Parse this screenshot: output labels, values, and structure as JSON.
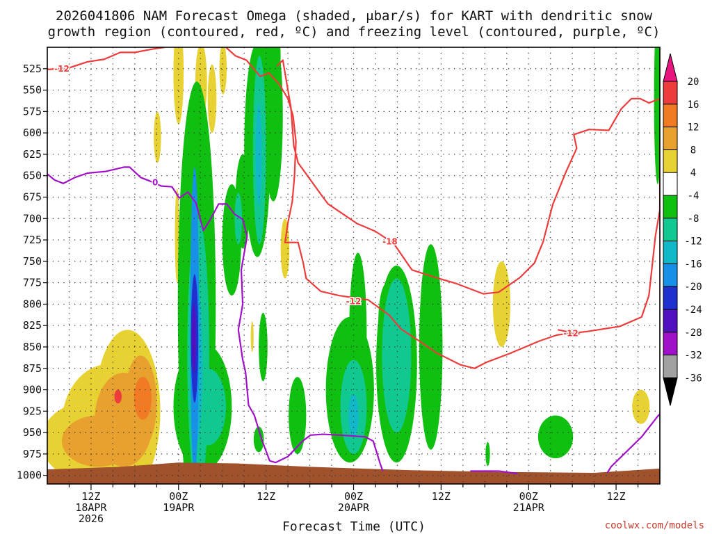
{
  "title": {
    "line1": "2026041806 NAM Forecast Omega (shaded, μbar/s) for KART with dendritic snow",
    "line2": "growth region (contoured, red, ºC) and freezing level (contoured, purple, ºC)"
  },
  "credit": "coolwx.com/models",
  "chart_data": {
    "type": "heatmap",
    "title": "2026041806 NAM Forecast Omega (shaded, μbar/s) for KART with dendritic snow growth region (contoured, red, ºC) and freezing level (contoured, purple, ºC)",
    "xlabel": "Forecast Time (UTC)",
    "ylabel": "",
    "x_units": "forecast hour",
    "y_units": "hPa",
    "xlim": [
      0,
      84
    ],
    "ylim": [
      1010,
      500
    ],
    "grid": true,
    "x_ticks": [
      {
        "hour": 6,
        "label": [
          "12Z",
          "18APR",
          "2026"
        ]
      },
      {
        "hour": 18,
        "label": [
          "00Z",
          "19APR"
        ]
      },
      {
        "hour": 30,
        "label": [
          "12Z"
        ]
      },
      {
        "hour": 42,
        "label": [
          "00Z",
          "20APR"
        ]
      },
      {
        "hour": 54,
        "label": [
          "12Z"
        ]
      },
      {
        "hour": 66,
        "label": [
          "00Z",
          "21APR"
        ]
      },
      {
        "hour": 78,
        "label": [
          "12Z"
        ]
      }
    ],
    "y_ticks": [
      525,
      550,
      575,
      600,
      625,
      650,
      675,
      700,
      725,
      750,
      775,
      800,
      825,
      850,
      875,
      900,
      925,
      950,
      975,
      1000
    ],
    "colorbar": {
      "labels": [
        "20",
        "16",
        "12",
        "8",
        "4",
        "-4",
        "-8",
        "-12",
        "-16",
        "-20",
        "-24",
        "-28",
        "-32",
        "-36"
      ],
      "bins": [
        {
          "range": [
            20,
            99
          ],
          "color": "#e8157f"
        },
        {
          "range": [
            16,
            20
          ],
          "color": "#ee3b3b"
        },
        {
          "range": [
            12,
            16
          ],
          "color": "#f07b24"
        },
        {
          "range": [
            8,
            12
          ],
          "color": "#e8a02e"
        },
        {
          "range": [
            4,
            8
          ],
          "color": "#e8d233"
        },
        {
          "range": [
            -4,
            4
          ],
          "color": "#ffffff"
        },
        {
          "range": [
            -8,
            -4
          ],
          "color": "#10c010"
        },
        {
          "range": [
            -12,
            -8
          ],
          "color": "#10c890"
        },
        {
          "range": [
            -16,
            -12
          ],
          "color": "#10b8c8"
        },
        {
          "range": [
            -20,
            -16
          ],
          "color": "#1890e8"
        },
        {
          "range": [
            -24,
            -20
          ],
          "color": "#2030d0"
        },
        {
          "range": [
            -28,
            -24
          ],
          "color": "#5010c0"
        },
        {
          "range": [
            -32,
            -28
          ],
          "color": "#a010c8"
        },
        {
          "range": [
            -36,
            -32
          ],
          "color": "#a0a0a0"
        },
        {
          "range": [
            -99,
            -36
          ],
          "color": "#000000"
        }
      ]
    },
    "omega_features": [
      {
        "hour": 5.2,
        "p": 960,
        "dh": 6.0,
        "dp": 45,
        "value": 6
      },
      {
        "hour": 8.5,
        "p": 940,
        "dh": 6.5,
        "dp": 70,
        "value": 6
      },
      {
        "hour": 11.0,
        "p": 925,
        "dh": 4.5,
        "dp": 95,
        "value": 6
      },
      {
        "hour": 7.0,
        "p": 960,
        "dh": 5.0,
        "dp": 30,
        "value": 10
      },
      {
        "hour": 10.5,
        "p": 935,
        "dh": 4.0,
        "dp": 55,
        "value": 10
      },
      {
        "hour": 12.8,
        "p": 915,
        "dh": 2.2,
        "dp": 55,
        "value": 10
      },
      {
        "hour": 13.1,
        "p": 910,
        "dh": 1.2,
        "dp": 25,
        "value": 14
      },
      {
        "hour": 9.7,
        "p": 908,
        "dh": 0.5,
        "dp": 8,
        "value": 18
      },
      {
        "hour": 15.1,
        "p": 605,
        "dh": 0.5,
        "dp": 30,
        "value": 6
      },
      {
        "hour": 18.0,
        "p": 530,
        "dh": 0.7,
        "dp": 60,
        "value": 6
      },
      {
        "hour": 17.8,
        "p": 720,
        "dh": 0.3,
        "dp": 55,
        "value": 6
      },
      {
        "hour": 21.1,
        "p": 540,
        "dh": 0.8,
        "dp": 45,
        "value": 6
      },
      {
        "hour": 22.6,
        "p": 560,
        "dh": 0.6,
        "dp": 40,
        "value": 6
      },
      {
        "hour": 24.1,
        "p": 525,
        "dh": 0.5,
        "dp": 30,
        "value": 6
      },
      {
        "hour": 28.1,
        "p": 838,
        "dh": 0.2,
        "dp": 18,
        "value": 6
      },
      {
        "hour": 32.6,
        "p": 735,
        "dh": 0.6,
        "dp": 35,
        "value": 6
      },
      {
        "hour": 62.3,
        "p": 800,
        "dh": 1.2,
        "dp": 50,
        "value": 6
      },
      {
        "hour": 81.4,
        "p": 920,
        "dh": 1.2,
        "dp": 20,
        "value": 6
      },
      {
        "hour": 20.5,
        "p": 800,
        "dh": 2.6,
        "dp": 260,
        "value": -6
      },
      {
        "hour": 21.3,
        "p": 920,
        "dh": 4.0,
        "dp": 75,
        "value": -6
      },
      {
        "hour": 25.3,
        "p": 725,
        "dh": 1.3,
        "dp": 65,
        "value": -6
      },
      {
        "hour": 26.8,
        "p": 680,
        "dh": 1.0,
        "dp": 55,
        "value": -6
      },
      {
        "hour": 28.8,
        "p": 620,
        "dh": 1.8,
        "dp": 125,
        "value": -6
      },
      {
        "hour": 31.0,
        "p": 580,
        "dh": 1.3,
        "dp": 100,
        "value": -6
      },
      {
        "hour": 30.6,
        "p": 510,
        "dh": 1.4,
        "dp": 40,
        "value": -6
      },
      {
        "hour": 29.6,
        "p": 850,
        "dh": 0.6,
        "dp": 40,
        "value": -6
      },
      {
        "hour": 29.0,
        "p": 958,
        "dh": 0.7,
        "dp": 15,
        "value": -6
      },
      {
        "hour": 34.3,
        "p": 930,
        "dh": 1.2,
        "dp": 45,
        "value": -6
      },
      {
        "hour": 41.5,
        "p": 900,
        "dh": 3.3,
        "dp": 85,
        "value": -6
      },
      {
        "hour": 42.6,
        "p": 835,
        "dh": 1.2,
        "dp": 95,
        "value": -6
      },
      {
        "hour": 47.9,
        "p": 870,
        "dh": 2.8,
        "dp": 115,
        "value": -6
      },
      {
        "hour": 46.6,
        "p": 820,
        "dh": 1.2,
        "dp": 45,
        "value": -6
      },
      {
        "hour": 52.6,
        "p": 850,
        "dh": 1.6,
        "dp": 120,
        "value": -6
      },
      {
        "hour": 69.7,
        "p": 955,
        "dh": 2.4,
        "dp": 25,
        "value": -6
      },
      {
        "hour": 83.7,
        "p": 560,
        "dh": 0.5,
        "dp": 100,
        "value": -6
      },
      {
        "hour": 60.4,
        "p": 975,
        "dh": 0.3,
        "dp": 14,
        "value": -6
      },
      {
        "hour": 20.7,
        "p": 860,
        "dh": 1.5,
        "dp": 160,
        "value": -10
      },
      {
        "hour": 22.0,
        "p": 920,
        "dh": 2.5,
        "dp": 45,
        "value": -10
      },
      {
        "hour": 29.1,
        "p": 620,
        "dh": 0.9,
        "dp": 110,
        "value": -10
      },
      {
        "hour": 26.2,
        "p": 700,
        "dh": 0.5,
        "dp": 30,
        "value": -10
      },
      {
        "hour": 42.0,
        "p": 920,
        "dh": 1.8,
        "dp": 55,
        "value": -10
      },
      {
        "hour": 47.9,
        "p": 860,
        "dh": 2.0,
        "dp": 90,
        "value": -10
      },
      {
        "hour": 20.5,
        "p": 870,
        "dh": 0.8,
        "dp": 90,
        "value": -14
      },
      {
        "hour": 29.0,
        "p": 625,
        "dh": 0.4,
        "dp": 60,
        "value": -14
      },
      {
        "hour": 42.0,
        "p": 930,
        "dh": 0.7,
        "dp": 25,
        "value": -14
      },
      {
        "hour": 20.2,
        "p": 820,
        "dh": 0.6,
        "dp": 180,
        "value": -18
      },
      {
        "hour": 20.2,
        "p": 840,
        "dh": 0.5,
        "dp": 75,
        "value": -22
      },
      {
        "hour": 20.1,
        "p": 840,
        "dh": 0.3,
        "dp": 40,
        "value": -26
      }
    ],
    "terrain": {
      "color": "#a0522d",
      "points": [
        [
          0,
          993
        ],
        [
          10,
          990
        ],
        [
          18,
          985
        ],
        [
          26,
          986
        ],
        [
          36,
          990
        ],
        [
          50,
          994
        ],
        [
          62,
          996
        ],
        [
          75,
          997
        ],
        [
          84,
          992
        ]
      ]
    },
    "series": [
      {
        "name": "-12",
        "color": "#ee3b3b",
        "points": [
          [
            0,
            526
          ],
          [
            3,
            524
          ],
          [
            5.5,
            517
          ],
          [
            7.8,
            514
          ],
          [
            10,
            506
          ],
          [
            12,
            506
          ],
          [
            14.5,
            502
          ],
          [
            16.1,
            500
          ]
        ],
        "label_at": [
          2,
          525
        ]
      },
      {
        "name": "-12",
        "color": "#ee3b3b",
        "points": [
          [
            24.5,
            500
          ],
          [
            25.8,
            510
          ],
          [
            27.3,
            515
          ],
          [
            29.2,
            534
          ],
          [
            30.4,
            530
          ],
          [
            31.8,
            543
          ],
          [
            33,
            560
          ],
          [
            33.7,
            580
          ],
          [
            34.1,
            610
          ],
          [
            33.9,
            650
          ],
          [
            33.6,
            680
          ],
          [
            33,
            705
          ],
          [
            32.6,
            728
          ],
          [
            34.4,
            728
          ],
          [
            35.1,
            752
          ],
          [
            35.5,
            770
          ],
          [
            37.5,
            785
          ],
          [
            40,
            790
          ],
          [
            44,
            795
          ],
          [
            46.9,
            813
          ],
          [
            48.5,
            829
          ],
          [
            51,
            843
          ],
          [
            53.4,
            857
          ],
          [
            56.7,
            871
          ],
          [
            58.6,
            875
          ],
          [
            60.2,
            868
          ],
          [
            63.3,
            858
          ],
          [
            67.5,
            843
          ],
          [
            69.9,
            836
          ],
          [
            74,
            832
          ],
          [
            78.5,
            826
          ],
          [
            81.5,
            815
          ],
          [
            82.5,
            790
          ],
          [
            83.4,
            720
          ],
          [
            84,
            690
          ],
          [
            84,
            610
          ],
          [
            85.3,
            590
          ]
        ],
        "label_at": [
          42,
          797
        ]
      },
      {
        "name": "-12",
        "color": "#ee3b3b",
        "points": [
          [
            70,
            830
          ],
          [
            73,
            835
          ]
        ],
        "label_at": [
          71.8,
          834
        ]
      },
      {
        "name": "-18",
        "color": "#ee3b3b",
        "points": [
          [
            31.5,
            522
          ],
          [
            32.3,
            515
          ],
          [
            33.4,
            570
          ],
          [
            33.8,
            615
          ],
          [
            34.4,
            635
          ],
          [
            37.2,
            668
          ],
          [
            38.5,
            683
          ],
          [
            42.5,
            706
          ],
          [
            45,
            715
          ],
          [
            47.5,
            729
          ],
          [
            50,
            760
          ],
          [
            53.3,
            769
          ],
          [
            56.1,
            776
          ],
          [
            59.8,
            788
          ],
          [
            61.9,
            786
          ],
          [
            64.8,
            769
          ],
          [
            66.8,
            752
          ],
          [
            68,
            727
          ],
          [
            69.3,
            684
          ],
          [
            71.1,
            646
          ],
          [
            72.6,
            618
          ],
          [
            72.2,
            602
          ],
          [
            74.3,
            596
          ],
          [
            77,
            597
          ],
          [
            78.7,
            572
          ],
          [
            80.1,
            560
          ],
          [
            81.3,
            560
          ],
          [
            82.5,
            565
          ],
          [
            84,
            560
          ],
          [
            85.3,
            556
          ]
        ],
        "label_at": [
          47,
          727
        ]
      },
      {
        "name": "0",
        "color": "#a010c8",
        "points": [
          [
            0,
            648
          ],
          [
            1,
            655
          ],
          [
            2.2,
            659
          ],
          [
            3.8,
            652
          ],
          [
            5.5,
            647
          ],
          [
            8,
            645
          ],
          [
            10.5,
            640
          ],
          [
            11.3,
            640
          ],
          [
            12.8,
            652
          ],
          [
            14.6,
            658
          ],
          [
            15.6,
            662
          ],
          [
            17.1,
            663
          ],
          [
            18.1,
            676
          ],
          [
            19.3,
            669
          ],
          [
            20.4,
            682
          ],
          [
            21.4,
            714
          ],
          [
            22.3,
            702
          ],
          [
            23.5,
            683
          ],
          [
            24.6,
            683
          ],
          [
            25.7,
            695
          ],
          [
            26.8,
            701
          ],
          [
            27.4,
            721
          ],
          [
            26.6,
            760
          ],
          [
            26.8,
            800
          ],
          [
            26.2,
            830
          ],
          [
            26.8,
            865
          ],
          [
            27.2,
            880
          ],
          [
            27.6,
            918
          ],
          [
            28.4,
            930
          ],
          [
            29.4,
            958
          ],
          [
            30.5,
            983
          ],
          [
            31.3,
            985
          ],
          [
            33,
            978
          ],
          [
            35,
            960
          ],
          [
            36.1,
            953
          ],
          [
            37.8,
            952
          ],
          [
            40.2,
            953
          ],
          [
            43.6,
            955
          ],
          [
            44.7,
            960
          ],
          [
            45.6,
            985
          ],
          [
            46,
            995
          ]
        ],
        "label_at": [
          14.8,
          658
        ]
      },
      {
        "name": "0",
        "color": "#a010c8",
        "points": [
          [
            58,
            995
          ],
          [
            62,
            995
          ],
          [
            64.5,
            998
          ]
        ]
      },
      {
        "name": "0",
        "color": "#a010c8",
        "points": [
          [
            76.8,
            997
          ],
          [
            77.3,
            990
          ],
          [
            81.5,
            955
          ],
          [
            83.8,
            930
          ],
          [
            85.5,
            918
          ]
        ]
      }
    ]
  }
}
